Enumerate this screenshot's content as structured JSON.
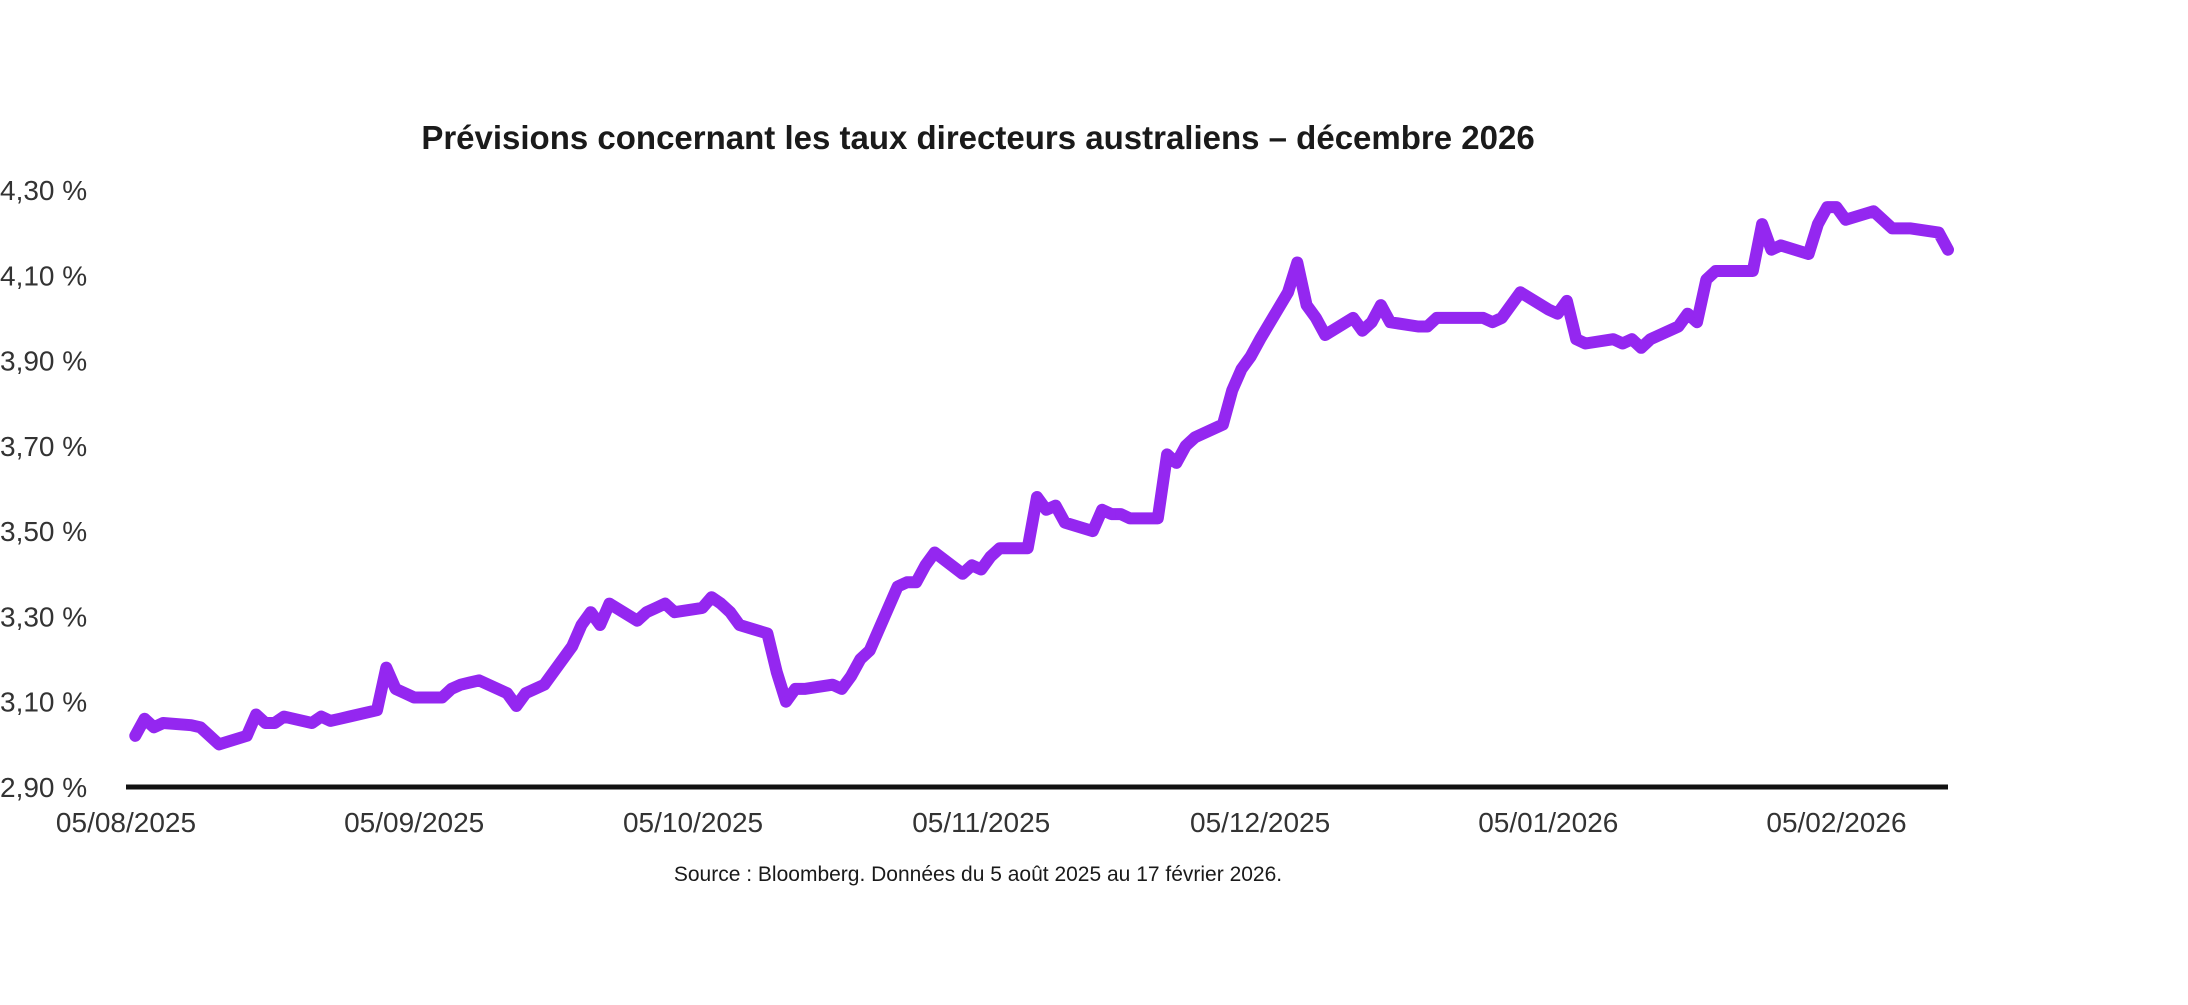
{
  "chart_data": {
    "type": "line",
    "title": "Prévisions concernant les taux directeurs australiens – décembre 2026",
    "xlabel": "",
    "ylabel": "",
    "source": "Source : Bloomberg. Données du 5 août 2025 au 17 février 2026.",
    "y_tick_labels": [
      "2,90 %",
      "3,10 %",
      "3,30 %",
      "3,50 %",
      "3,70 %",
      "3,90 %",
      "4,10 %",
      "4,30 %"
    ],
    "y_ticks": [
      2.9,
      3.1,
      3.3,
      3.5,
      3.7,
      3.9,
      4.1,
      4.3
    ],
    "ylim": [
      2.9,
      4.3
    ],
    "x_tick_labels": [
      "05/08/2025",
      "05/09/2025",
      "05/10/2025",
      "05/11/2025",
      "05/12/2025",
      "05/01/2026",
      "05/02/2026"
    ],
    "x_ticks": [
      "2025-08-05",
      "2025-09-05",
      "2025-10-05",
      "2025-11-05",
      "2025-12-05",
      "2026-01-05",
      "2026-02-05"
    ],
    "xlim": [
      "2025-08-05",
      "2026-02-17"
    ],
    "grid": false,
    "legend": "none",
    "colors": {
      "line": "#9427f0",
      "axis": "#111111"
    },
    "series": [
      {
        "x": [
          "2025-08-06",
          "2025-08-07",
          "2025-08-08",
          "2025-08-09",
          "2025-08-12",
          "2025-08-13",
          "2025-08-14",
          "2025-08-15",
          "2025-08-18",
          "2025-08-19",
          "2025-08-20",
          "2025-08-21",
          "2025-08-22",
          "2025-08-25",
          "2025-08-26",
          "2025-08-27",
          "2025-08-28",
          "2025-08-29",
          "2025-09-01",
          "2025-09-02",
          "2025-09-03",
          "2025-09-04",
          "2025-09-05",
          "2025-09-08",
          "2025-09-09",
          "2025-09-10",
          "2025-09-11",
          "2025-09-12",
          "2025-09-15",
          "2025-09-16",
          "2025-09-17",
          "2025-09-18",
          "2025-09-19",
          "2025-09-22",
          "2025-09-23",
          "2025-09-24",
          "2025-09-25",
          "2025-09-26",
          "2025-09-29",
          "2025-09-30",
          "2025-10-01",
          "2025-10-02",
          "2025-10-03",
          "2025-10-06",
          "2025-10-07",
          "2025-10-08",
          "2025-10-09",
          "2025-10-10",
          "2025-10-13",
          "2025-10-14",
          "2025-10-15",
          "2025-10-16",
          "2025-10-17",
          "2025-10-20",
          "2025-10-21",
          "2025-10-22",
          "2025-10-23",
          "2025-10-24",
          "2025-10-27",
          "2025-10-28",
          "2025-10-29",
          "2025-10-30",
          "2025-10-31",
          "2025-11-03",
          "2025-11-04",
          "2025-11-05",
          "2025-11-06",
          "2025-11-07",
          "2025-11-10",
          "2025-11-11",
          "2025-11-12",
          "2025-11-13",
          "2025-11-14",
          "2025-11-17",
          "2025-11-18",
          "2025-11-19",
          "2025-11-20",
          "2025-11-21",
          "2025-11-24",
          "2025-11-25",
          "2025-11-26",
          "2025-11-27",
          "2025-11-28",
          "2025-12-01",
          "2025-12-02",
          "2025-12-03",
          "2025-12-04",
          "2025-12-05",
          "2025-12-08",
          "2025-12-09",
          "2025-12-10",
          "2025-12-11",
          "2025-12-12",
          "2025-12-15",
          "2025-12-16",
          "2025-12-17",
          "2025-12-18",
          "2025-12-19",
          "2025-12-22",
          "2025-12-23",
          "2025-12-24",
          "2025-12-29",
          "2025-12-30",
          "2025-12-31",
          "2026-01-02",
          "2026-01-05",
          "2026-01-06",
          "2026-01-07",
          "2026-01-08",
          "2026-01-09",
          "2026-01-12",
          "2026-01-13",
          "2026-01-14",
          "2026-01-15",
          "2026-01-16",
          "2026-01-19",
          "2026-01-20",
          "2026-01-21",
          "2026-01-22",
          "2026-01-23",
          "2026-01-26",
          "2026-01-27",
          "2026-01-28",
          "2026-01-29",
          "2026-01-30",
          "2026-02-02",
          "2026-02-03",
          "2026-02-04",
          "2026-02-05",
          "2026-02-06",
          "2026-02-09",
          "2026-02-10",
          "2026-02-11",
          "2026-02-12",
          "2026-02-13",
          "2026-02-16",
          "2026-02-17"
        ],
        "values": [
          3.02,
          3.06,
          3.04,
          3.05,
          3.045,
          3.04,
          3.02,
          3.0,
          3.02,
          3.07,
          3.05,
          3.05,
          3.065,
          3.05,
          3.065,
          3.055,
          3.06,
          3.065,
          3.08,
          3.18,
          3.13,
          3.12,
          3.11,
          3.11,
          3.13,
          3.14,
          3.145,
          3.15,
          3.12,
          3.09,
          3.12,
          3.13,
          3.14,
          3.23,
          3.28,
          3.31,
          3.28,
          3.33,
          3.29,
          3.31,
          3.32,
          3.33,
          3.31,
          3.32,
          3.345,
          3.33,
          3.31,
          3.28,
          3.26,
          3.17,
          3.1,
          3.13,
          3.13,
          3.14,
          3.13,
          3.16,
          3.2,
          3.22,
          3.37,
          3.38,
          3.38,
          3.42,
          3.45,
          3.4,
          3.42,
          3.41,
          3.44,
          3.46,
          3.46,
          3.58,
          3.55,
          3.56,
          3.52,
          3.5,
          3.55,
          3.54,
          3.54,
          3.53,
          3.53,
          3.68,
          3.66,
          3.7,
          3.72,
          3.75,
          3.83,
          3.88,
          3.91,
          3.95,
          4.06,
          4.13,
          4.03,
          4.0,
          3.96,
          4.0,
          3.97,
          3.99,
          4.03,
          3.99,
          3.98,
          3.98,
          4.0,
          4.0,
          3.99,
          4.0,
          4.06,
          4.02,
          4.01,
          4.04,
          3.95,
          3.94,
          3.95,
          3.94,
          3.95,
          3.93,
          3.95,
          3.98,
          4.01,
          3.99,
          4.09,
          4.11,
          4.11,
          4.11,
          4.22,
          4.16,
          4.17,
          4.15,
          4.22,
          4.26,
          4.26,
          4.23,
          4.25,
          4.23,
          4.21,
          4.21,
          4.21,
          4.2,
          4.16
        ]
      }
    ]
  }
}
